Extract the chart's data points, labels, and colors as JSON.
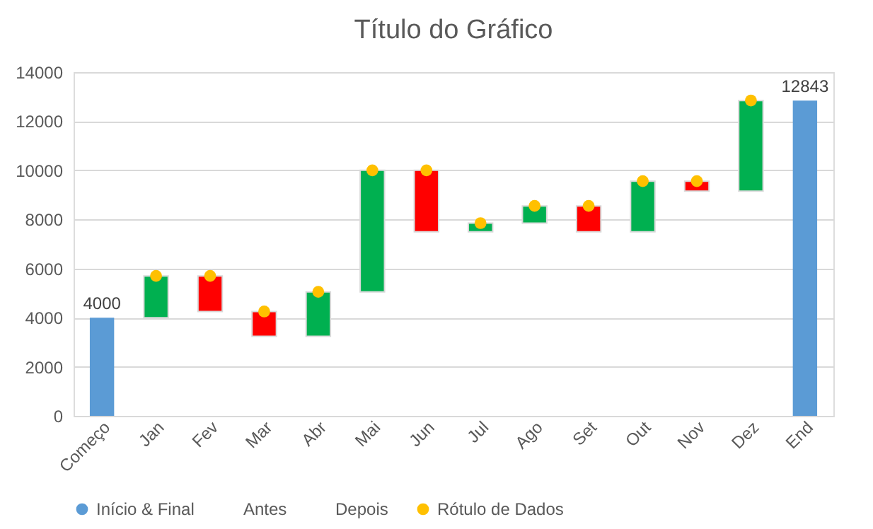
{
  "chart_data": {
    "type": "bar",
    "title": "Título do Gráfico",
    "categories": [
      "Começo",
      "Jan",
      "Fev",
      "Mar",
      "Abr",
      "Mai",
      "Jun",
      "Jul",
      "Ago",
      "Set",
      "Out",
      "Nov",
      "Dez",
      "End"
    ],
    "series": [
      {
        "name": "Início & Final",
        "color": "#5b9bd5",
        "values": [
          4000,
          null,
          null,
          null,
          null,
          null,
          null,
          null,
          null,
          null,
          null,
          null,
          null,
          12843
        ],
        "value_labels": [
          "4000",
          null,
          null,
          null,
          null,
          null,
          null,
          null,
          null,
          null,
          null,
          null,
          null,
          "12843"
        ]
      },
      {
        "base": [
          null,
          4000,
          5700,
          4250,
          3240,
          5050,
          10000,
          7500,
          7850,
          8550,
          7500,
          9560,
          9150,
          null
        ],
        "values": [
          null,
          1700,
          -1450,
          -1010,
          1810,
          4950,
          -2500,
          350,
          700,
          -1050,
          2060,
          -410,
          3693,
          null
        ],
        "colors": [
          null,
          "#00b050",
          "#ff0000",
          "#ff0000",
          "#00b050",
          "#00b050",
          "#ff0000",
          "#00b050",
          "#00b050",
          "#ff0000",
          "#00b050",
          "#ff0000",
          "#00b050",
          null
        ]
      },
      {
        "name": "Rótulo de Dados",
        "type": "scatter",
        "color": "#ffc000",
        "marker": "circle",
        "values": [
          null,
          5700,
          5700,
          4250,
          5050,
          10000,
          10000,
          7850,
          8550,
          8550,
          9560,
          9560,
          12843,
          null
        ]
      }
    ],
    "ylim": [
      0,
      14000
    ],
    "yticks": [
      0,
      2000,
      4000,
      6000,
      8000,
      10000,
      12000,
      14000
    ],
    "grid": "y",
    "legend": "bottom",
    "annotations": [
      "Antes",
      "Depois"
    ]
  }
}
